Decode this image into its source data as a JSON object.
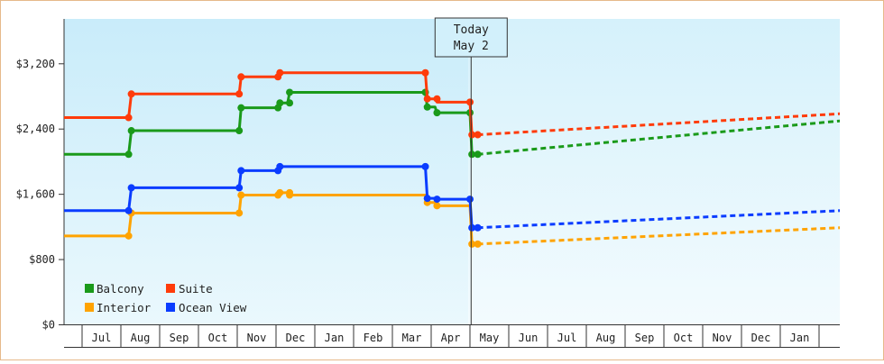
{
  "chart_data": {
    "type": "line",
    "y_axis": {
      "ticks": [
        0,
        800,
        1600,
        2400,
        3200
      ],
      "tick_labels": [
        "$0",
        "$800",
        "$1,600",
        "$2,400",
        "$3,200"
      ],
      "ylim": [
        0,
        3750
      ]
    },
    "x_axis": {
      "months": [
        "Jul",
        "Aug",
        "Sep",
        "Oct",
        "Nov",
        "Dec",
        "Jan",
        "Feb",
        "Mar",
        "Apr",
        "May",
        "Jun",
        "Jul",
        "Aug",
        "Sep",
        "Oct",
        "Nov",
        "Dec",
        "Jan"
      ],
      "range_months": [
        0,
        19.75
      ]
    },
    "today": {
      "line1": "Today",
      "line2": "May 2",
      "x": 10.03
    },
    "legend": {
      "placement": "bottom-left"
    },
    "background": {
      "past_color": "#cdeefa",
      "future_color": "#e9f7fd"
    },
    "series": [
      {
        "name": "Balcony",
        "color": "#1a9a1a",
        "history": [
          [
            -0.5,
            2090
          ],
          [
            1.2,
            2090
          ],
          [
            1.27,
            2380
          ],
          [
            4.05,
            2380
          ],
          [
            4.1,
            2660
          ],
          [
            5.05,
            2660
          ],
          [
            5.1,
            2720
          ],
          [
            5.3,
            2720
          ],
          [
            5.35,
            2850
          ],
          [
            8.85,
            2850
          ],
          [
            8.9,
            2670
          ],
          [
            9.1,
            2670
          ],
          [
            9.15,
            2600
          ],
          [
            10.0,
            2600
          ],
          [
            10.05,
            2090
          ],
          [
            10.2,
            2090
          ]
        ],
        "markers": [
          [
            1.2,
            2090
          ],
          [
            1.27,
            2380
          ],
          [
            4.05,
            2380
          ],
          [
            4.1,
            2660
          ],
          [
            5.05,
            2660
          ],
          [
            5.1,
            2720
          ],
          [
            5.35,
            2720
          ],
          [
            5.35,
            2850
          ],
          [
            8.85,
            2850
          ],
          [
            8.9,
            2670
          ],
          [
            9.15,
            2600
          ],
          [
            10.0,
            2600
          ],
          [
            10.05,
            2090
          ],
          [
            10.2,
            2090
          ]
        ],
        "forecast": [
          [
            10.2,
            2090
          ],
          [
            20,
            2520
          ]
        ]
      },
      {
        "name": "Suite",
        "color": "#ff3b0a",
        "history": [
          [
            -0.5,
            2540
          ],
          [
            1.2,
            2540
          ],
          [
            1.27,
            2830
          ],
          [
            4.05,
            2830
          ],
          [
            4.1,
            3040
          ],
          [
            5.05,
            3040
          ],
          [
            5.1,
            3090
          ],
          [
            8.85,
            3090
          ],
          [
            8.9,
            2770
          ],
          [
            9.1,
            2770
          ],
          [
            9.15,
            2730
          ],
          [
            10.0,
            2730
          ],
          [
            10.05,
            2330
          ],
          [
            10.2,
            2330
          ]
        ],
        "markers": [
          [
            1.2,
            2540
          ],
          [
            1.27,
            2830
          ],
          [
            4.05,
            2830
          ],
          [
            4.1,
            3040
          ],
          [
            5.05,
            3040
          ],
          [
            5.1,
            3090
          ],
          [
            8.85,
            3090
          ],
          [
            8.9,
            2770
          ],
          [
            9.15,
            2770
          ],
          [
            10.0,
            2730
          ],
          [
            10.05,
            2330
          ],
          [
            10.2,
            2330
          ]
        ],
        "forecast": [
          [
            10.2,
            2330
          ],
          [
            20,
            2600
          ]
        ]
      },
      {
        "name": "Interior",
        "color": "#ffa300",
        "history": [
          [
            -0.5,
            1090
          ],
          [
            1.2,
            1090
          ],
          [
            1.27,
            1370
          ],
          [
            4.05,
            1370
          ],
          [
            4.1,
            1590
          ],
          [
            5.05,
            1590
          ],
          [
            5.1,
            1620
          ],
          [
            5.3,
            1620
          ],
          [
            5.35,
            1590
          ],
          [
            8.85,
            1590
          ],
          [
            8.9,
            1500
          ],
          [
            9.1,
            1500
          ],
          [
            9.15,
            1460
          ],
          [
            10.0,
            1460
          ],
          [
            10.05,
            990
          ],
          [
            10.2,
            990
          ]
        ],
        "markers": [
          [
            1.2,
            1090
          ],
          [
            1.27,
            1370
          ],
          [
            4.05,
            1370
          ],
          [
            4.1,
            1590
          ],
          [
            5.05,
            1590
          ],
          [
            5.1,
            1620
          ],
          [
            5.35,
            1620
          ],
          [
            5.35,
            1590
          ],
          [
            8.9,
            1500
          ],
          [
            9.15,
            1460
          ],
          [
            10.05,
            990
          ],
          [
            10.2,
            990
          ]
        ],
        "forecast": [
          [
            10.2,
            990
          ],
          [
            20,
            1200
          ]
        ]
      },
      {
        "name": "Ocean View",
        "color": "#0a3cff",
        "history": [
          [
            -0.5,
            1400
          ],
          [
            1.2,
            1400
          ],
          [
            1.27,
            1680
          ],
          [
            4.05,
            1680
          ],
          [
            4.1,
            1890
          ],
          [
            5.05,
            1890
          ],
          [
            5.1,
            1940
          ],
          [
            8.85,
            1940
          ],
          [
            8.9,
            1550
          ],
          [
            9.1,
            1550
          ],
          [
            9.15,
            1540
          ],
          [
            10.0,
            1540
          ],
          [
            10.05,
            1190
          ],
          [
            10.2,
            1190
          ]
        ],
        "markers": [
          [
            1.2,
            1400
          ],
          [
            1.27,
            1680
          ],
          [
            4.05,
            1680
          ],
          [
            4.1,
            1890
          ],
          [
            5.05,
            1890
          ],
          [
            5.1,
            1940
          ],
          [
            8.85,
            1940
          ],
          [
            8.9,
            1550
          ],
          [
            9.15,
            1540
          ],
          [
            10.0,
            1540
          ],
          [
            10.05,
            1190
          ],
          [
            10.2,
            1190
          ]
        ],
        "forecast": [
          [
            10.2,
            1190
          ],
          [
            20,
            1410
          ]
        ]
      }
    ]
  }
}
